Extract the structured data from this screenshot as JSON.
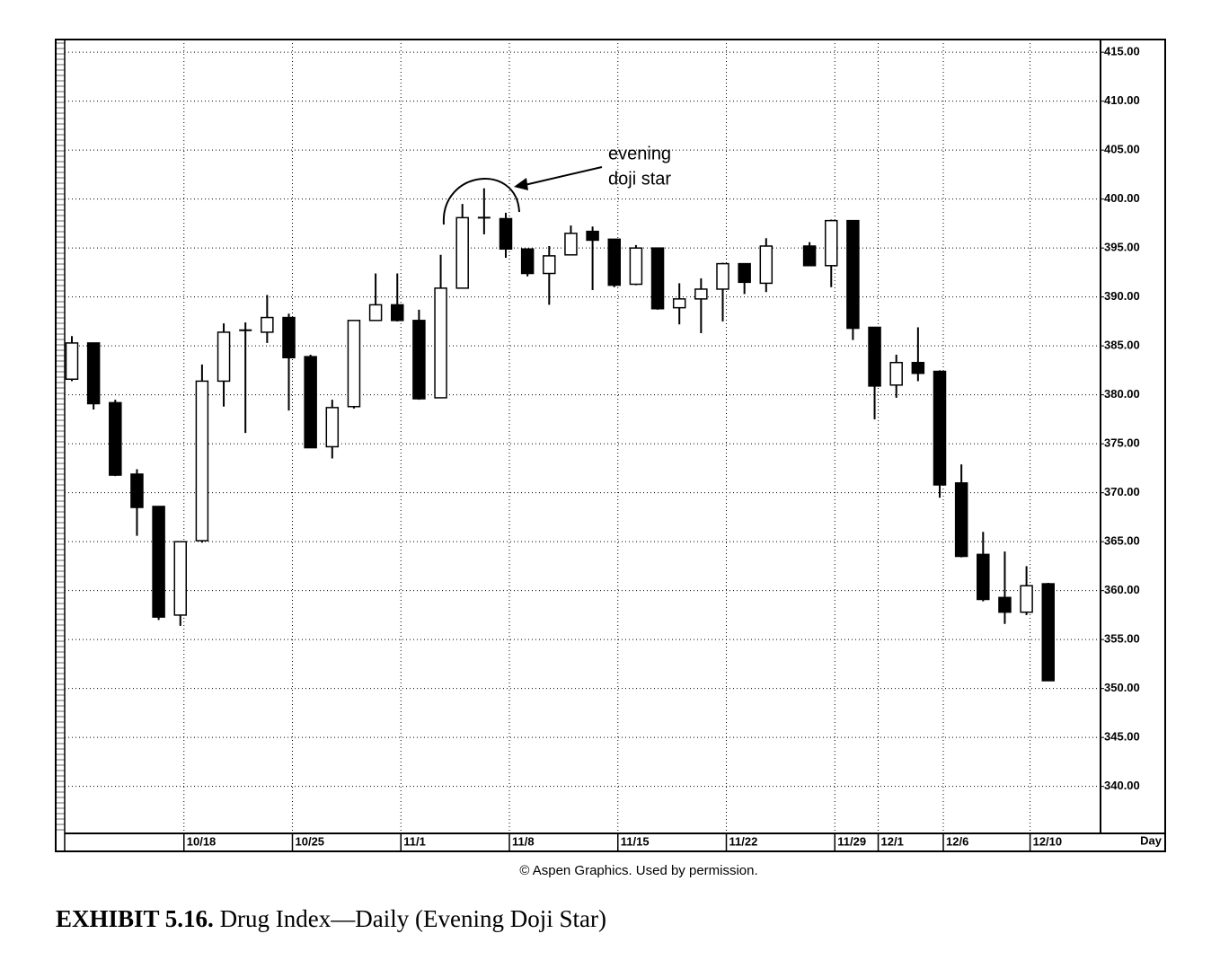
{
  "chart_data": {
    "type": "candlestick",
    "categories": [
      null,
      null,
      null,
      null,
      null,
      "10/18",
      null,
      null,
      null,
      null,
      "10/25",
      null,
      null,
      null,
      null,
      "11/1",
      null,
      null,
      null,
      null,
      "11/8",
      null,
      null,
      null,
      null,
      "11/15",
      null,
      null,
      null,
      null,
      "11/22",
      null,
      null,
      null,
      null,
      "11/29",
      null,
      "12/1",
      null,
      null,
      "12/6",
      null,
      null,
      null,
      "12/10",
      null
    ],
    "open": [
      381.6,
      385.3,
      379.2,
      371.9,
      368.6,
      357.5,
      365.1,
      381.4,
      386.5,
      386.4,
      387.9,
      383.9,
      374.7,
      378.8,
      387.6,
      389.2,
      387.6,
      379.7,
      390.9,
      398.0,
      398.0,
      394.9,
      392.4,
      394.3,
      396.7,
      395.9,
      391.3,
      395.0,
      388.9,
      389.8,
      390.8,
      393.4,
      391.4,
      null,
      395.2,
      393.2,
      397.8,
      386.9,
      381.0,
      383.3,
      382.4,
      371.0,
      363.7,
      359.3,
      357.8,
      360.7
    ],
    "high": [
      386.0,
      385.3,
      379.5,
      372.4,
      368.6,
      365.0,
      383.1,
      387.3,
      387.4,
      390.2,
      388.3,
      384.1,
      379.5,
      387.6,
      392.4,
      392.4,
      388.7,
      394.3,
      399.5,
      401.1,
      398.6,
      394.9,
      395.2,
      397.3,
      397.2,
      395.9,
      395.3,
      395.0,
      391.4,
      391.9,
      393.5,
      393.4,
      396.0,
      null,
      395.6,
      397.9,
      397.8,
      386.9,
      384.1,
      386.9,
      382.5,
      372.9,
      366.0,
      364.0,
      362.5,
      360.8
    ],
    "low": [
      381.4,
      378.5,
      371.7,
      365.6,
      357.0,
      356.4,
      364.9,
      378.8,
      376.1,
      385.3,
      378.4,
      374.6,
      373.5,
      378.6,
      387.6,
      387.5,
      379.5,
      379.7,
      390.9,
      396.4,
      394.0,
      392.1,
      389.2,
      394.3,
      390.7,
      391.0,
      391.2,
      388.7,
      387.2,
      386.3,
      387.5,
      390.3,
      390.5,
      null,
      393.2,
      391.0,
      385.6,
      377.5,
      379.7,
      381.4,
      369.5,
      363.4,
      358.9,
      356.6,
      357.5,
      350.8
    ],
    "close": [
      385.3,
      379.1,
      371.8,
      368.5,
      357.3,
      365.0,
      381.4,
      386.4,
      386.6,
      387.9,
      383.8,
      374.6,
      378.7,
      387.6,
      389.2,
      387.6,
      379.6,
      390.9,
      398.1,
      398.1,
      394.9,
      392.4,
      394.2,
      396.5,
      395.8,
      391.2,
      395.0,
      388.8,
      389.8,
      390.8,
      393.4,
      391.5,
      395.2,
      null,
      393.2,
      397.8,
      386.8,
      380.9,
      383.3,
      382.2,
      370.8,
      363.5,
      359.1,
      357.8,
      360.5,
      350.8
    ],
    "up_color": "#ffffff",
    "down_color": "#000000",
    "ylim": [
      335.2,
      416.3
    ],
    "yticks": [
      {
        "value": 340,
        "label": "340.00"
      },
      {
        "value": 345,
        "label": "345.00"
      },
      {
        "value": 350,
        "label": "350.00"
      },
      {
        "value": 355,
        "label": "355.00"
      },
      {
        "value": 360,
        "label": "360.00"
      },
      {
        "value": 365,
        "label": "365.00"
      },
      {
        "value": 370,
        "label": "370.00"
      },
      {
        "value": 375,
        "label": "375.00"
      },
      {
        "value": 380,
        "label": "380.00"
      },
      {
        "value": 385,
        "label": "385.00"
      },
      {
        "value": 390,
        "label": "390.00"
      },
      {
        "value": 395,
        "label": "395.00"
      },
      {
        "value": 400,
        "label": "400.00"
      },
      {
        "value": 405,
        "label": "405.00"
      },
      {
        "value": 410,
        "label": "410.00"
      },
      {
        "value": 415,
        "label": "415.00"
      }
    ],
    "grid": true,
    "xlabel": "Day",
    "annotation": [
      "evening",
      "doji star"
    ],
    "source": "© Aspen Graphics. Used by permission.",
    "caption_label": "EXHIBIT 5.16.",
    "caption": "Drug Index—Daily (Evening Doji Star)"
  }
}
